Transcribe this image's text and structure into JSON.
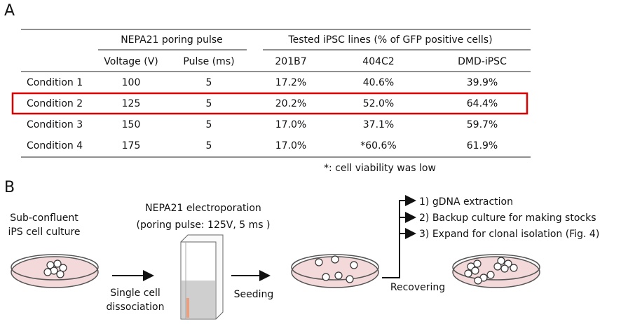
{
  "panel_a": {
    "label": "A",
    "table": {
      "group_headers": [
        "NEPA21 poring pulse",
        "Tested iPSC lines (% of GFP positive cells)"
      ],
      "columns": [
        "Voltage (V)",
        "Pulse (ms)",
        "201B7",
        "404C2",
        "DMD-iPSC"
      ],
      "rows": [
        [
          "Condition 1",
          "100",
          "5",
          "17.2%",
          "40.6%",
          "39.9%"
        ],
        [
          "Condition 2",
          "125",
          "5",
          "20.2%",
          "52.0%",
          "64.4%"
        ],
        [
          "Condition 3",
          "150",
          "5",
          "17.0%",
          "37.1%",
          "59.7%"
        ],
        [
          "Condition 4",
          "175",
          "5",
          "17.0%",
          "*60.6%",
          "61.9%"
        ]
      ],
      "footnote": "*: cell viability was low"
    }
  },
  "panel_b": {
    "label": "B",
    "start": [
      "Sub-confluent",
      "iPS cell culture"
    ],
    "step1": [
      "Single cell",
      "dissociation"
    ],
    "device": [
      "NEPA21 electroporation",
      "(poring pulse: 125V, 5 ms )"
    ],
    "step2": "Seeding",
    "step3": "Recovering",
    "outcomes": [
      "1) gDNA extraction",
      "2) Backup culture for making stocks",
      "3) Expand for clonal isolation (Fig. 4)"
    ]
  }
}
